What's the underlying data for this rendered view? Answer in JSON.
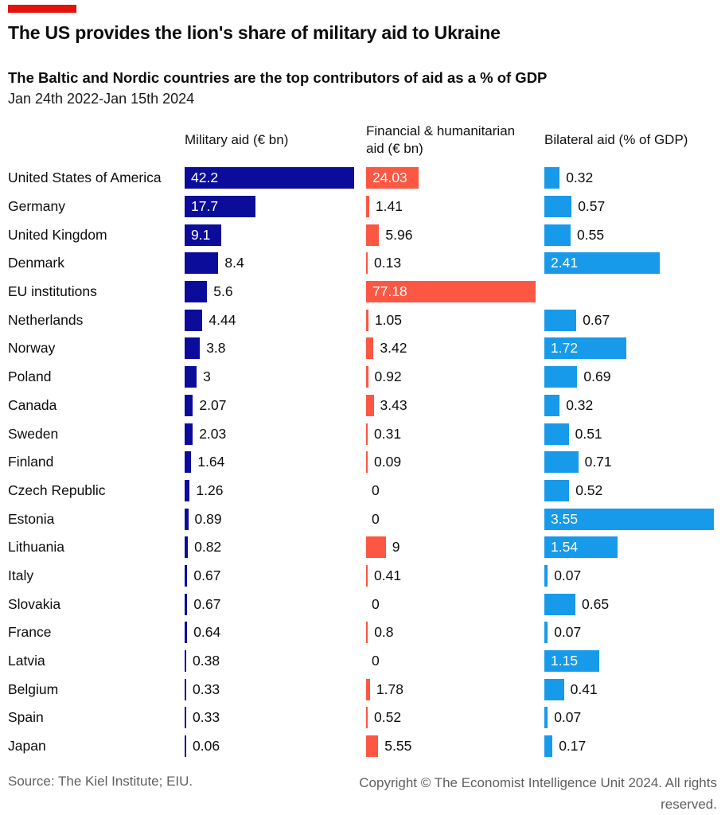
{
  "header": {
    "title": "The US provides the lion's share of military aid to Ukraine",
    "subtitle": "The Baltic and Nordic countries are the top contributors of aid as a % of GDP",
    "date_range": "Jan 24th 2022-Jan 15th 2024"
  },
  "colors": {
    "brand_red_tab": "#e3120b",
    "military_navy": "#0c0c9b",
    "financial_red": "#fb5743",
    "bilateral_blue": "#179ae9",
    "text": "#0d0d0d",
    "footer_gray": "#5f5f5f"
  },
  "chart_data": {
    "type": "bar",
    "orientation": "horizontal",
    "grid": false,
    "legend_position": "column-headers",
    "value_labels": "on-bars",
    "categories": [
      "United States of America",
      "Germany",
      "United Kingdom",
      "Denmark",
      "EU institutions",
      "Netherlands",
      "Norway",
      "Poland",
      "Canada",
      "Sweden",
      "Finland",
      "Czech Republic",
      "Estonia",
      "Lithuania",
      "Italy",
      "Slovakia",
      "France",
      "Latvia",
      "Belgium",
      "Spain",
      "Japan"
    ],
    "series": [
      {
        "name": "Military aid (€ bn)",
        "color": "#0c0c9b",
        "axis_max": 42.2,
        "values": [
          42.2,
          17.7,
          9.1,
          8.4,
          5.6,
          4.44,
          3.8,
          3,
          2.07,
          2.03,
          1.64,
          1.26,
          0.89,
          0.82,
          0.67,
          0.67,
          0.64,
          0.38,
          0.33,
          0.33,
          0.06
        ]
      },
      {
        "name": "Financial & humanitarian aid (€ bn)",
        "color": "#fb5743",
        "axis_max": 77.18,
        "values": [
          24.03,
          1.41,
          5.96,
          0.13,
          77.18,
          1.05,
          3.42,
          0.92,
          3.43,
          0.31,
          0.09,
          0,
          0,
          9,
          0.41,
          0,
          0.8,
          0,
          1.78,
          0.52,
          5.55
        ]
      },
      {
        "name": "Bilateral aid (% of GDP)",
        "color": "#179ae9",
        "axis_max": 3.55,
        "values": [
          0.32,
          0.57,
          0.55,
          2.41,
          null,
          0.67,
          1.72,
          0.69,
          0.32,
          0.51,
          0.71,
          0.52,
          3.55,
          1.54,
          0.07,
          0.65,
          0.07,
          1.15,
          0.41,
          0.07,
          0.17
        ]
      }
    ]
  },
  "footer": {
    "source": "Source: The Kiel Institute; EIU.",
    "copyright": "Copyright © The Economist Intelligence Unit 2024. All rights reserved."
  }
}
